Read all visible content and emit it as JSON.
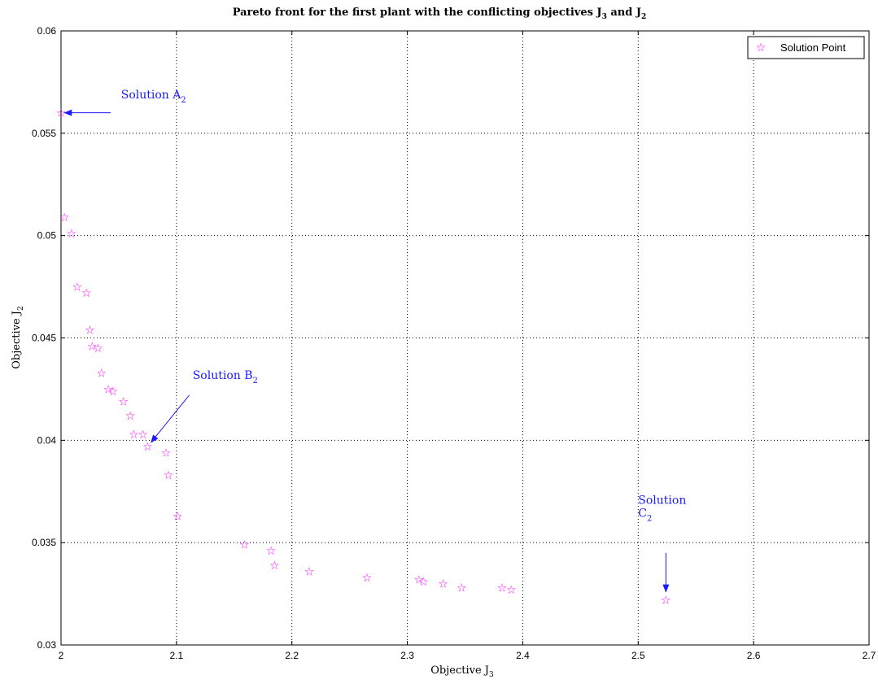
{
  "chart_data": {
    "type": "scatter",
    "title": "Pareto front for the first plant with the conflicting objectives J3 and J2",
    "title_parts": {
      "pre": "Pareto front for the first plant with the conflicting objectives J",
      "sub1": "3",
      "mid": " and J",
      "sub2": "2"
    },
    "xlabel": "Objective J3",
    "xlabel_parts": {
      "pre": "Objective J",
      "sub": "3"
    },
    "ylabel": "Objective J2",
    "ylabel_parts": {
      "pre": "Objective J",
      "sub": "2"
    },
    "xlim": [
      2,
      2.7
    ],
    "ylim": [
      0.03,
      0.06
    ],
    "xticks": [
      "2",
      "2.1",
      "2.2",
      "2.3",
      "2.4",
      "2.5",
      "2.6",
      "2.7"
    ],
    "yticks": [
      "0.03",
      "0.035",
      "0.04",
      "0.045",
      "0.05",
      "0.055",
      "0.06"
    ],
    "grid": true,
    "legend_position": "top-right",
    "series": [
      {
        "name": "Solution Point",
        "color": "#ff00ff",
        "marker": "star",
        "points": [
          [
            2.0,
            0.056
          ],
          [
            2.003,
            0.0509
          ],
          [
            2.009,
            0.0501
          ],
          [
            2.014,
            0.0475
          ],
          [
            2.022,
            0.0472
          ],
          [
            2.025,
            0.0454
          ],
          [
            2.027,
            0.0446
          ],
          [
            2.032,
            0.0445
          ],
          [
            2.035,
            0.0433
          ],
          [
            2.041,
            0.0425
          ],
          [
            2.045,
            0.0424
          ],
          [
            2.054,
            0.0419
          ],
          [
            2.06,
            0.0412
          ],
          [
            2.063,
            0.0403
          ],
          [
            2.071,
            0.0403
          ],
          [
            2.075,
            0.0397
          ],
          [
            2.091,
            0.0394
          ],
          [
            2.093,
            0.0383
          ],
          [
            2.101,
            0.0363
          ],
          [
            2.159,
            0.0349
          ],
          [
            2.182,
            0.0346
          ],
          [
            2.185,
            0.0339
          ],
          [
            2.215,
            0.0336
          ],
          [
            2.265,
            0.0333
          ],
          [
            2.31,
            0.0332
          ],
          [
            2.314,
            0.0331
          ],
          [
            2.331,
            0.033
          ],
          [
            2.347,
            0.0328
          ],
          [
            2.382,
            0.0328
          ],
          [
            2.39,
            0.0327
          ],
          [
            2.524,
            0.0322
          ]
        ]
      }
    ],
    "annotations": [
      {
        "label": "Solution A",
        "sub": "2",
        "label_x": 2.052,
        "label_y": 0.0567,
        "arrow_from": [
          2.043,
          0.056
        ],
        "arrow_to": [
          2.003,
          0.056
        ]
      },
      {
        "label": "Solution B",
        "sub": "2",
        "label_x": 2.114,
        "label_y": 0.043,
        "arrow_from": [
          2.111,
          0.0422
        ],
        "arrow_to": [
          2.078,
          0.0399
        ]
      },
      {
        "label": "Solution",
        "line2": "C",
        "sub": "2",
        "label_x": 2.5,
        "label_y": 0.0369,
        "arrow_from": [
          2.524,
          0.0345
        ],
        "arrow_to": [
          2.524,
          0.0326
        ]
      }
    ]
  }
}
